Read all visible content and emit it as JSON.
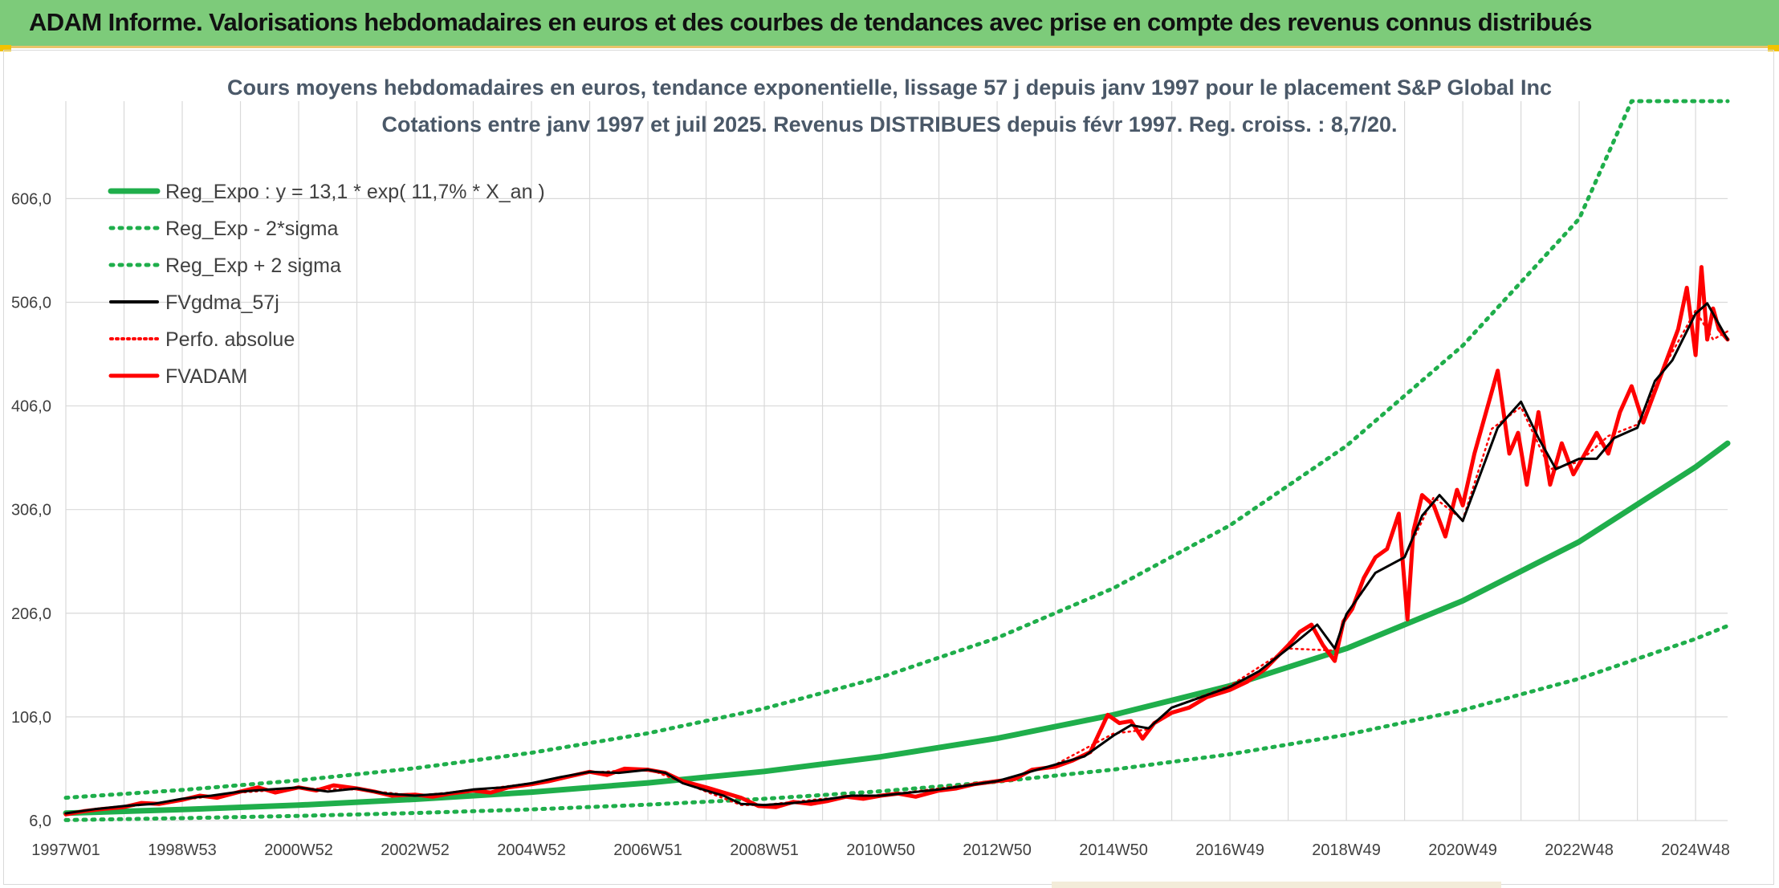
{
  "header": {
    "title": "ADAM Informe. Valorisations hebdomadaires en euros et des courbes de tendances avec prise en compte des revenus connus distribués"
  },
  "colors": {
    "header_bg": "#7dcb7a",
    "green": "#1fae4b",
    "red": "#ff0000",
    "black": "#000000",
    "grid": "#d9d9d9"
  },
  "chart_data": {
    "type": "line",
    "title_lines": [
      "Cours moyens hebdomadaires en euros, tendance exponentielle, lissage 57 j depuis janv 1997 pour le placement S&P Global Inc",
      "Cotations entre janv 1997 et juil 2025. Revenus DISTRIBUES depuis févr 1997. Reg. croiss. : 8,7/20."
    ],
    "y_ticks": [
      "6,0",
      "106,0",
      "206,0",
      "306,0",
      "406,0",
      "506,0",
      "606,0"
    ],
    "y_tick_values": [
      6,
      106,
      206,
      306,
      406,
      506,
      606
    ],
    "ylim": [
      6,
      700
    ],
    "x_ticks": [
      "1997W01",
      "1998W53",
      "2000W52",
      "2002W52",
      "2004W52",
      "2006W51",
      "2008W51",
      "2010W50",
      "2012W50",
      "2014W50",
      "2016W49",
      "2018W49",
      "2020W49",
      "2022W48",
      "2024W48"
    ],
    "x_tick_years": [
      1997.0,
      1999.0,
      2001.0,
      2003.0,
      2005.0,
      2007.0,
      2009.0,
      2011.0,
      2013.0,
      2015.0,
      2017.0,
      2019.0,
      2021.0,
      2023.0,
      2025.0
    ],
    "xlim": [
      1997.0,
      2025.55
    ],
    "legend_position": "top-left",
    "grid": true,
    "series": [
      {
        "name": "Reg_Expo : y = 13,1 * exp( 11,7% *  X_an )",
        "style": "solid-green",
        "x": [
          1997,
          1999,
          2001,
          2003,
          2005,
          2007,
          2009,
          2011,
          2013,
          2015,
          2017,
          2019,
          2021,
          2023,
          2025,
          2025.55
        ],
        "y": [
          13.1,
          16.6,
          20.9,
          26.5,
          33.4,
          42.3,
          53.4,
          67.5,
          85.3,
          108,
          136,
          172,
          218,
          275,
          347,
          370
        ]
      },
      {
        "name": "Reg_Exp - 2*sigma",
        "style": "dotted-green",
        "x": [
          1997,
          1999,
          2001,
          2003,
          2005,
          2007,
          2009,
          2011,
          2013,
          2015,
          2017,
          2019,
          2021,
          2023,
          2025,
          2025.55
        ],
        "y": [
          6.5,
          8.3,
          10.5,
          13.3,
          16.8,
          21.3,
          27.0,
          34.3,
          43.5,
          55.2,
          70.0,
          88.8,
          112.6,
          142.9,
          181.3,
          193.8
        ]
      },
      {
        "name": "Reg_Exp + 2 sigma",
        "style": "dotted-green",
        "x": [
          1997,
          1999,
          2001,
          2003,
          2005,
          2007,
          2009,
          2011,
          2013,
          2015,
          2017,
          2019,
          2021,
          2023,
          2023.9,
          2025.55
        ],
        "y": [
          28.0,
          35.5,
          44.8,
          56.5,
          71.4,
          90.2,
          114.1,
          144.2,
          182.2,
          230.2,
          290.8,
          367.4,
          464.2,
          586.5,
          700,
          700
        ]
      },
      {
        "name": "FVgdma_57j",
        "style": "solid-black",
        "x": [
          1997.0,
          1997.5,
          1998.0,
          1998.5,
          1999.0,
          1999.5,
          2000.0,
          2000.5,
          2001.0,
          2001.5,
          2002.0,
          2002.5,
          2003.0,
          2003.5,
          2004.0,
          2004.5,
          2005.0,
          2005.5,
          2006.0,
          2006.5,
          2007.0,
          2007.3,
          2007.6,
          2008.0,
          2008.3,
          2008.6,
          2009.0,
          2009.5,
          2010.0,
          2010.5,
          2011.0,
          2011.5,
          2012.0,
          2012.5,
          2013.0,
          2013.5,
          2014.0,
          2014.5,
          2015.0,
          2015.3,
          2015.6,
          2016.0,
          2016.5,
          2017.0,
          2017.5,
          2018.0,
          2018.5,
          2018.8,
          2019.0,
          2019.5,
          2020.0,
          2020.3,
          2020.6,
          2021.0,
          2021.3,
          2021.6,
          2022.0,
          2022.3,
          2022.6,
          2023.0,
          2023.3,
          2023.6,
          2024.0,
          2024.3,
          2024.6,
          2025.0,
          2025.2,
          2025.4,
          2025.55
        ],
        "y": [
          13,
          17,
          20,
          22,
          27,
          30,
          34,
          36,
          38,
          34,
          37,
          32,
          30,
          32,
          36,
          38,
          42,
          48,
          53,
          52,
          55,
          52,
          42,
          35,
          30,
          22,
          21,
          23,
          26,
          30,
          30,
          33,
          36,
          40,
          44,
          52,
          60,
          68,
          88,
          98,
          95,
          115,
          125,
          135,
          150,
          172,
          195,
          172,
          205,
          245,
          260,
          300,
          320,
          295,
          340,
          385,
          410,
          375,
          345,
          355,
          355,
          375,
          385,
          430,
          450,
          495,
          505,
          485,
          470
        ]
      },
      {
        "name": "Perfo. absolue",
        "style": "dotted-red",
        "x": [
          1997.0,
          1998.0,
          1999.0,
          2000.0,
          2001.0,
          2002.0,
          2003.0,
          2004.0,
          2005.0,
          2006.0,
          2007.0,
          2008.0,
          2008.6,
          2009.0,
          2010.0,
          2011.0,
          2012.0,
          2013.0,
          2014.0,
          2015.0,
          2015.6,
          2016.0,
          2017.0,
          2018.0,
          2018.8,
          2019.0,
          2019.5,
          2020.0,
          2020.5,
          2021.0,
          2021.5,
          2022.0,
          2022.5,
          2023.0,
          2023.5,
          2024.0,
          2024.5,
          2025.0,
          2025.3,
          2025.55
        ],
        "y": [
          12,
          19,
          26,
          33,
          37,
          36,
          30,
          35,
          42,
          52,
          56,
          34,
          21,
          21,
          27,
          30,
          37,
          44,
          60,
          90,
          94,
          115,
          136,
          172,
          170,
          204,
          245,
          260,
          318,
          296,
          384,
          405,
          345,
          352,
          377,
          388,
          448,
          498,
          470,
          478
        ]
      },
      {
        "name": "FVADAM",
        "style": "solid-red",
        "x": [
          1997.0,
          1997.3,
          1997.6,
          1998.0,
          1998.3,
          1998.6,
          1999.0,
          1999.3,
          1999.6,
          2000.0,
          2000.3,
          2000.6,
          2001.0,
          2001.3,
          2001.6,
          2002.0,
          2002.3,
          2002.6,
          2003.0,
          2003.3,
          2003.6,
          2004.0,
          2004.3,
          2004.6,
          2005.0,
          2005.3,
          2005.6,
          2006.0,
          2006.3,
          2006.6,
          2007.0,
          2007.3,
          2007.6,
          2008.0,
          2008.3,
          2008.6,
          2008.9,
          2009.2,
          2009.5,
          2009.8,
          2010.1,
          2010.4,
          2010.7,
          2011.0,
          2011.3,
          2011.6,
          2012.0,
          2012.3,
          2012.6,
          2013.0,
          2013.3,
          2013.6,
          2014.0,
          2014.3,
          2014.6,
          2014.9,
          2015.1,
          2015.3,
          2015.5,
          2015.7,
          2016.0,
          2016.3,
          2016.6,
          2017.0,
          2017.3,
          2017.6,
          2018.0,
          2018.2,
          2018.4,
          2018.6,
          2018.8,
          2018.95,
          2019.1,
          2019.3,
          2019.5,
          2019.7,
          2019.9,
          2020.05,
          2020.15,
          2020.3,
          2020.5,
          2020.7,
          2020.9,
          2021.0,
          2021.2,
          2021.4,
          2021.6,
          2021.8,
          2021.95,
          2022.1,
          2022.3,
          2022.5,
          2022.7,
          2022.9,
          2023.1,
          2023.3,
          2023.5,
          2023.7,
          2023.9,
          2024.1,
          2024.3,
          2024.5,
          2024.7,
          2024.85,
          2025.0,
          2025.1,
          2025.2,
          2025.3,
          2025.4,
          2025.55
        ],
        "y": [
          12,
          15,
          17,
          19,
          23,
          22,
          26,
          30,
          28,
          34,
          38,
          33,
          38,
          35,
          40,
          37,
          34,
          30,
          31,
          29,
          32,
          35,
          33,
          38,
          41,
          44,
          48,
          53,
          50,
          56,
          55,
          52,
          44,
          38,
          33,
          28,
          20,
          19,
          24,
          22,
          25,
          29,
          27,
          30,
          32,
          29,
          35,
          37,
          41,
          44,
          46,
          55,
          58,
          64,
          72,
          108,
          100,
          102,
          85,
          100,
          110,
          115,
          125,
          132,
          140,
          152,
          175,
          188,
          195,
          175,
          160,
          198,
          210,
          240,
          260,
          268,
          302,
          200,
          285,
          320,
          310,
          280,
          325,
          310,
          360,
          400,
          440,
          360,
          380,
          330,
          400,
          330,
          370,
          340,
          360,
          380,
          360,
          400,
          425,
          390,
          420,
          450,
          480,
          520,
          455,
          540,
          470,
          500,
          480,
          470
        ]
      }
    ]
  }
}
